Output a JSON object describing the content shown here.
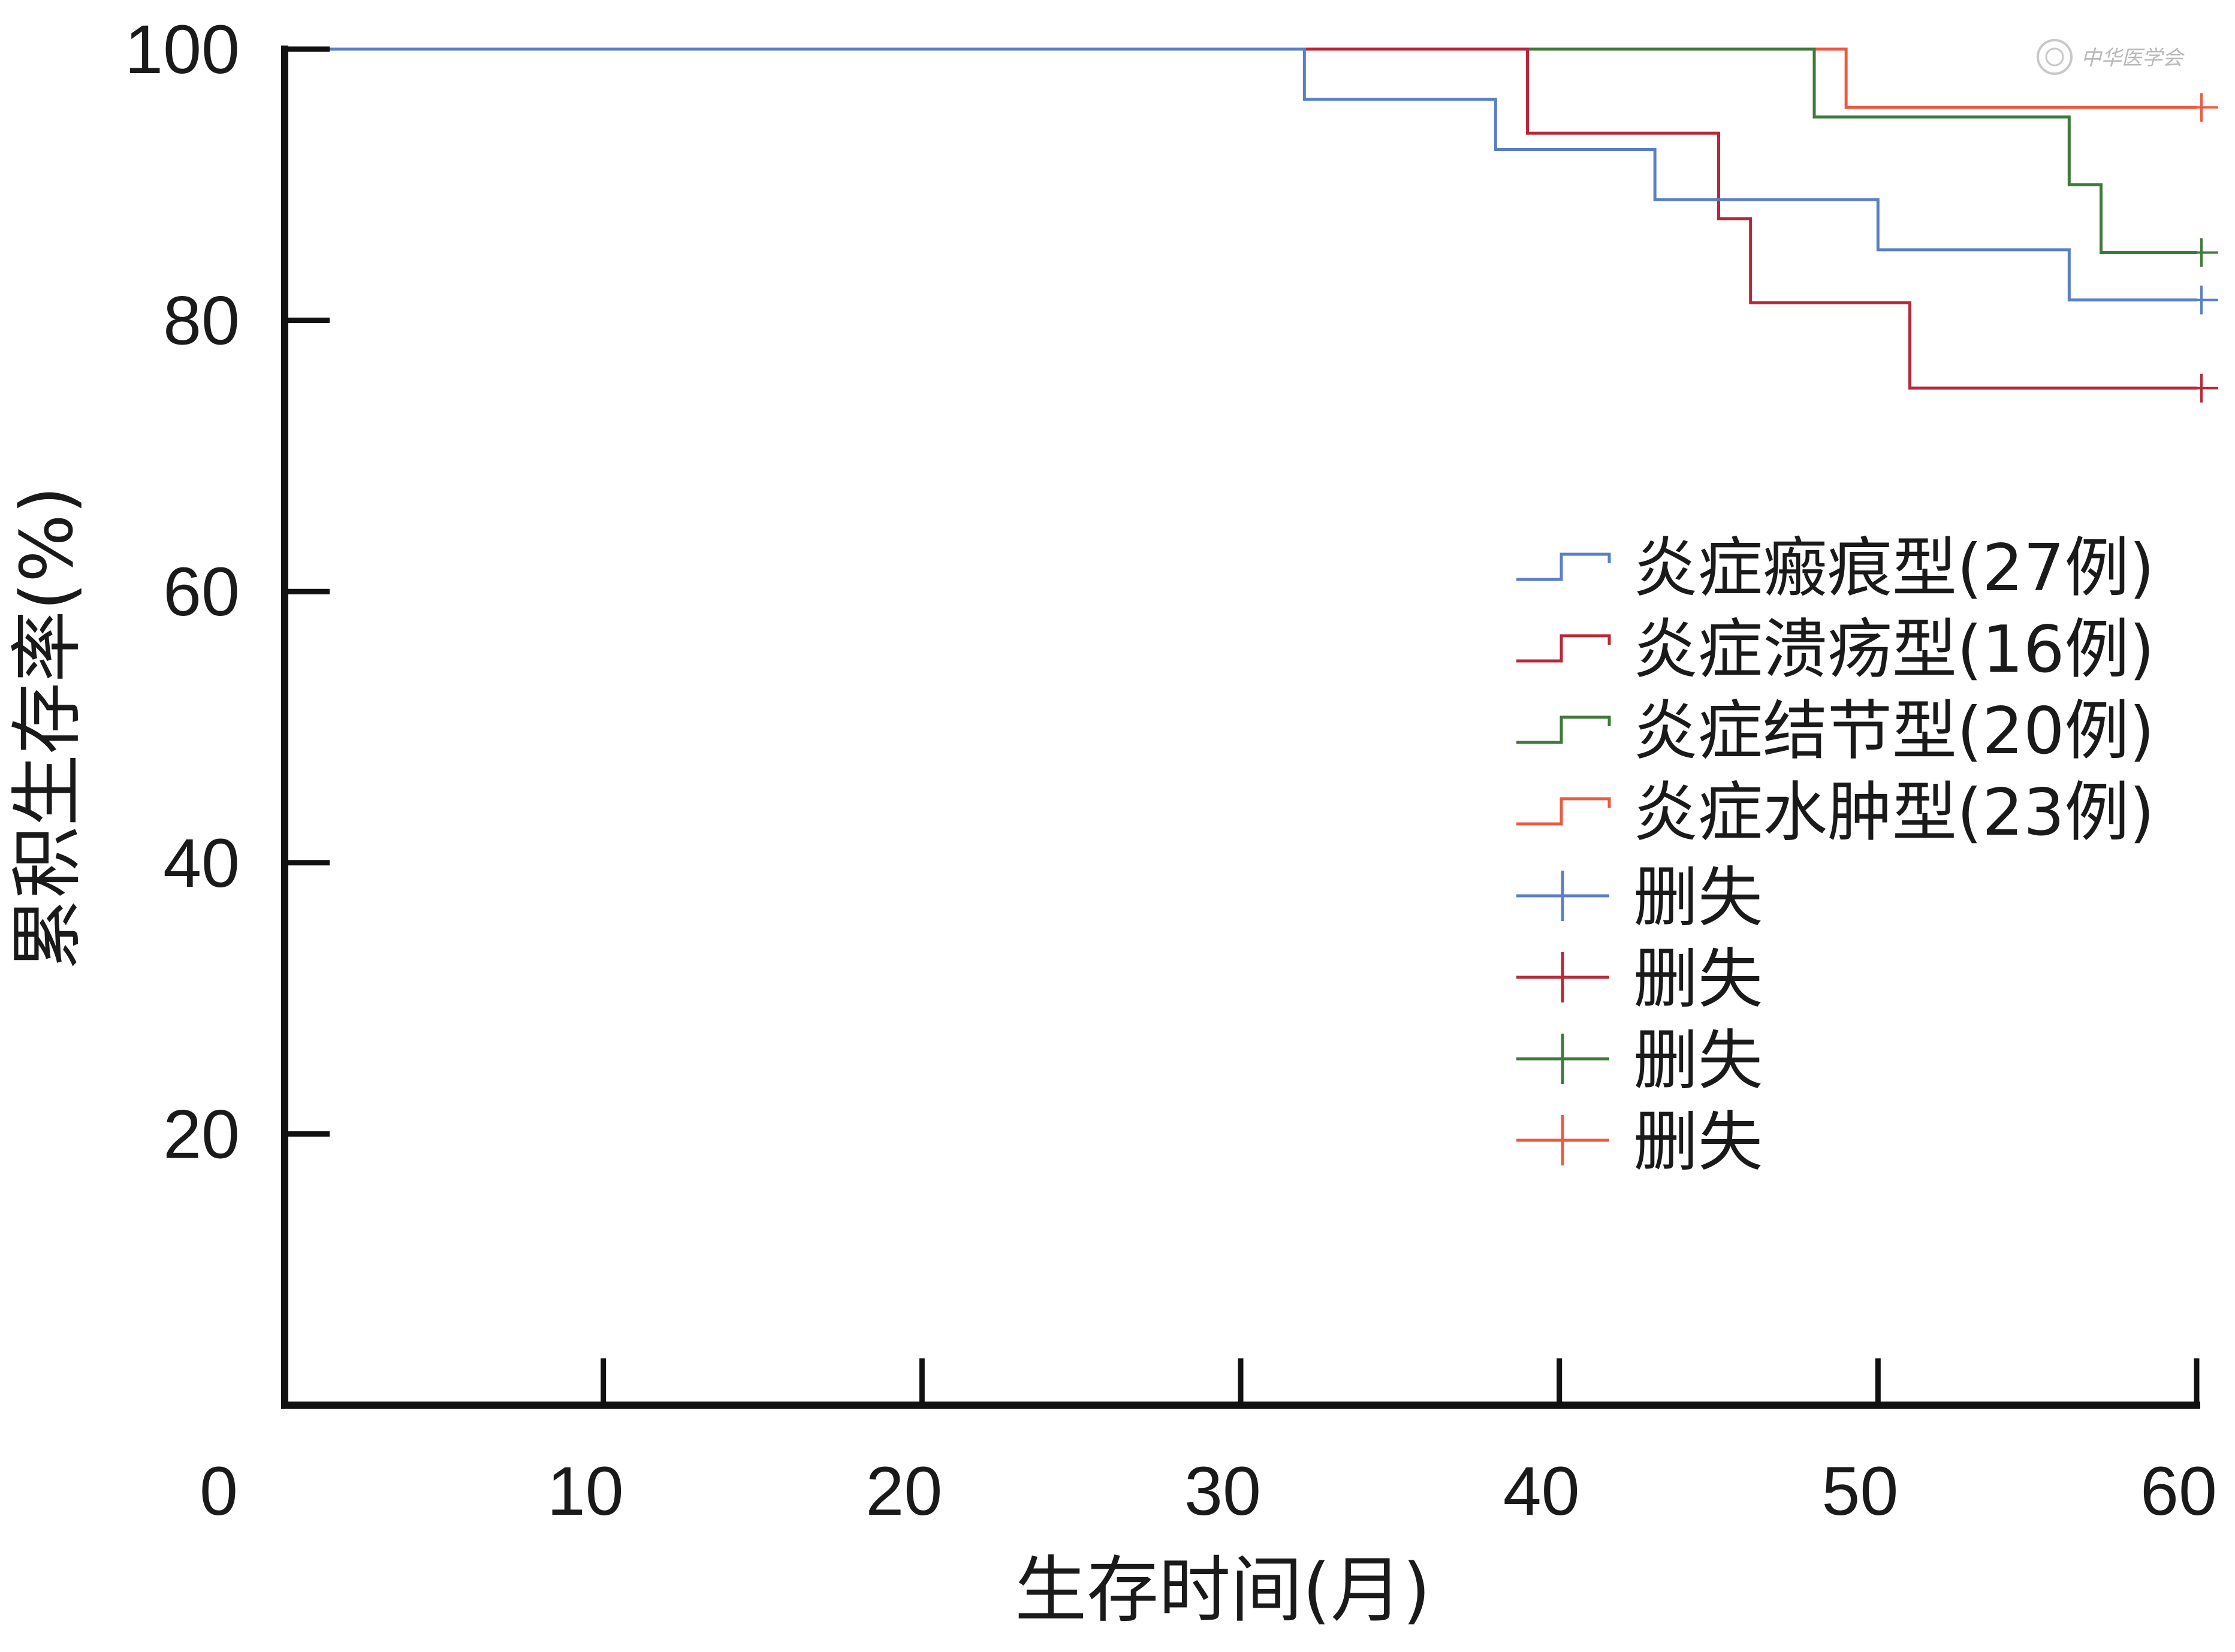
{
  "chart_data": {
    "type": "line",
    "subtype": "kaplan-meier step",
    "title": "",
    "xlabel": "生存时间(月)",
    "ylabel": "累积生存率(%)",
    "xlim": [
      0,
      60
    ],
    "ylim": [
      0,
      100
    ],
    "x_ticks": [
      "0",
      "10",
      "20",
      "30",
      "40",
      "50",
      "60"
    ],
    "y_ticks": [
      "20",
      "40",
      "60",
      "80",
      "100"
    ],
    "grid": false,
    "legend_position": "right",
    "series": [
      {
        "name": "炎症瘢痕型(27例)",
        "color": "#5b7fc4",
        "steps": [
          [
            0,
            100
          ],
          [
            32,
            96.3
          ],
          [
            38,
            92.6
          ],
          [
            43,
            88.9
          ],
          [
            50,
            85.2
          ],
          [
            56,
            81.5
          ],
          [
            60,
            81.5
          ]
        ],
        "censored": [
          [
            60,
            81.5
          ]
        ]
      },
      {
        "name": "炎症溃疡型(16例)",
        "color": "#b8283a",
        "steps": [
          [
            0,
            100
          ],
          [
            39,
            93.8
          ],
          [
            45,
            87.5
          ],
          [
            46,
            81.3
          ],
          [
            51,
            75.0
          ],
          [
            60,
            75.0
          ]
        ],
        "censored": [
          [
            60,
            75.0
          ]
        ]
      },
      {
        "name": "炎症结节型(20例)",
        "color": "#3e7a3a",
        "steps": [
          [
            0,
            100
          ],
          [
            48,
            95.0
          ],
          [
            56,
            90.0
          ],
          [
            57,
            85.0
          ],
          [
            60,
            85.0
          ]
        ],
        "censored": [
          [
            60,
            85.0
          ]
        ]
      },
      {
        "name": "炎症水肿型(23例)",
        "color": "#ec5a40",
        "steps": [
          [
            0,
            100
          ],
          [
            49,
            95.7
          ],
          [
            60,
            95.7
          ]
        ],
        "censored": [
          [
            60,
            95.7
          ]
        ]
      }
    ],
    "censor_legend": [
      {
        "label": "删失",
        "color": "#5b7fc4"
      },
      {
        "label": "删失",
        "color": "#b8283a"
      },
      {
        "label": "删失",
        "color": "#3e7a3a"
      },
      {
        "label": "删失",
        "color": "#ec5a40"
      }
    ]
  },
  "watermark": {
    "text": "中华医学会"
  }
}
